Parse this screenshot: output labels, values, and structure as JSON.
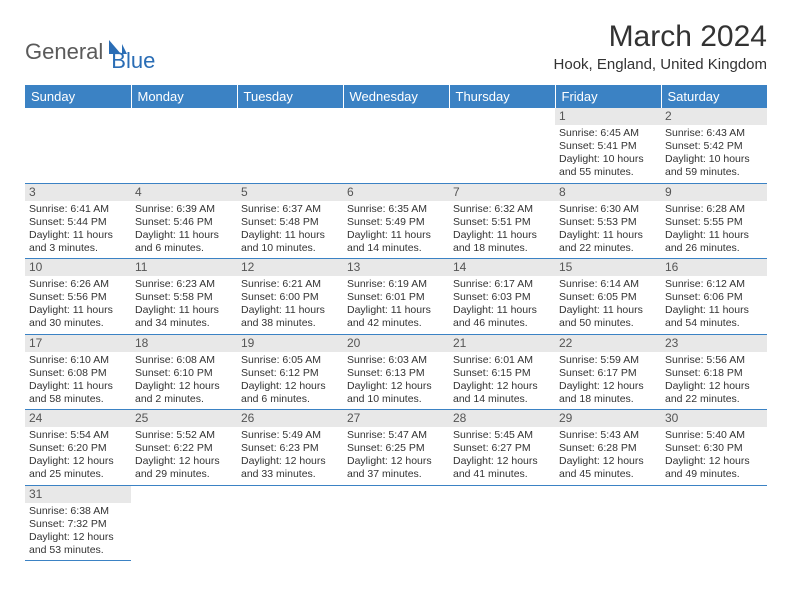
{
  "logo": {
    "general": "General",
    "blue": "Blue"
  },
  "title": "March 2024",
  "location": "Hook, England, United Kingdom",
  "colors": {
    "header_bg": "#3b82c4",
    "header_text": "#ffffff",
    "daynum_bg": "#e8e8e8",
    "border": "#3b82c4"
  },
  "weekdays": [
    "Sunday",
    "Monday",
    "Tuesday",
    "Wednesday",
    "Thursday",
    "Friday",
    "Saturday"
  ],
  "weeks": [
    [
      null,
      null,
      null,
      null,
      null,
      {
        "n": "1",
        "sunrise": "Sunrise: 6:45 AM",
        "sunset": "Sunset: 5:41 PM",
        "daylight": "Daylight: 10 hours and 55 minutes."
      },
      {
        "n": "2",
        "sunrise": "Sunrise: 6:43 AM",
        "sunset": "Sunset: 5:42 PM",
        "daylight": "Daylight: 10 hours and 59 minutes."
      }
    ],
    [
      {
        "n": "3",
        "sunrise": "Sunrise: 6:41 AM",
        "sunset": "Sunset: 5:44 PM",
        "daylight": "Daylight: 11 hours and 3 minutes."
      },
      {
        "n": "4",
        "sunrise": "Sunrise: 6:39 AM",
        "sunset": "Sunset: 5:46 PM",
        "daylight": "Daylight: 11 hours and 6 minutes."
      },
      {
        "n": "5",
        "sunrise": "Sunrise: 6:37 AM",
        "sunset": "Sunset: 5:48 PM",
        "daylight": "Daylight: 11 hours and 10 minutes."
      },
      {
        "n": "6",
        "sunrise": "Sunrise: 6:35 AM",
        "sunset": "Sunset: 5:49 PM",
        "daylight": "Daylight: 11 hours and 14 minutes."
      },
      {
        "n": "7",
        "sunrise": "Sunrise: 6:32 AM",
        "sunset": "Sunset: 5:51 PM",
        "daylight": "Daylight: 11 hours and 18 minutes."
      },
      {
        "n": "8",
        "sunrise": "Sunrise: 6:30 AM",
        "sunset": "Sunset: 5:53 PM",
        "daylight": "Daylight: 11 hours and 22 minutes."
      },
      {
        "n": "9",
        "sunrise": "Sunrise: 6:28 AM",
        "sunset": "Sunset: 5:55 PM",
        "daylight": "Daylight: 11 hours and 26 minutes."
      }
    ],
    [
      {
        "n": "10",
        "sunrise": "Sunrise: 6:26 AM",
        "sunset": "Sunset: 5:56 PM",
        "daylight": "Daylight: 11 hours and 30 minutes."
      },
      {
        "n": "11",
        "sunrise": "Sunrise: 6:23 AM",
        "sunset": "Sunset: 5:58 PM",
        "daylight": "Daylight: 11 hours and 34 minutes."
      },
      {
        "n": "12",
        "sunrise": "Sunrise: 6:21 AM",
        "sunset": "Sunset: 6:00 PM",
        "daylight": "Daylight: 11 hours and 38 minutes."
      },
      {
        "n": "13",
        "sunrise": "Sunrise: 6:19 AM",
        "sunset": "Sunset: 6:01 PM",
        "daylight": "Daylight: 11 hours and 42 minutes."
      },
      {
        "n": "14",
        "sunrise": "Sunrise: 6:17 AM",
        "sunset": "Sunset: 6:03 PM",
        "daylight": "Daylight: 11 hours and 46 minutes."
      },
      {
        "n": "15",
        "sunrise": "Sunrise: 6:14 AM",
        "sunset": "Sunset: 6:05 PM",
        "daylight": "Daylight: 11 hours and 50 minutes."
      },
      {
        "n": "16",
        "sunrise": "Sunrise: 6:12 AM",
        "sunset": "Sunset: 6:06 PM",
        "daylight": "Daylight: 11 hours and 54 minutes."
      }
    ],
    [
      {
        "n": "17",
        "sunrise": "Sunrise: 6:10 AM",
        "sunset": "Sunset: 6:08 PM",
        "daylight": "Daylight: 11 hours and 58 minutes."
      },
      {
        "n": "18",
        "sunrise": "Sunrise: 6:08 AM",
        "sunset": "Sunset: 6:10 PM",
        "daylight": "Daylight: 12 hours and 2 minutes."
      },
      {
        "n": "19",
        "sunrise": "Sunrise: 6:05 AM",
        "sunset": "Sunset: 6:12 PM",
        "daylight": "Daylight: 12 hours and 6 minutes."
      },
      {
        "n": "20",
        "sunrise": "Sunrise: 6:03 AM",
        "sunset": "Sunset: 6:13 PM",
        "daylight": "Daylight: 12 hours and 10 minutes."
      },
      {
        "n": "21",
        "sunrise": "Sunrise: 6:01 AM",
        "sunset": "Sunset: 6:15 PM",
        "daylight": "Daylight: 12 hours and 14 minutes."
      },
      {
        "n": "22",
        "sunrise": "Sunrise: 5:59 AM",
        "sunset": "Sunset: 6:17 PM",
        "daylight": "Daylight: 12 hours and 18 minutes."
      },
      {
        "n": "23",
        "sunrise": "Sunrise: 5:56 AM",
        "sunset": "Sunset: 6:18 PM",
        "daylight": "Daylight: 12 hours and 22 minutes."
      }
    ],
    [
      {
        "n": "24",
        "sunrise": "Sunrise: 5:54 AM",
        "sunset": "Sunset: 6:20 PM",
        "daylight": "Daylight: 12 hours and 25 minutes."
      },
      {
        "n": "25",
        "sunrise": "Sunrise: 5:52 AM",
        "sunset": "Sunset: 6:22 PM",
        "daylight": "Daylight: 12 hours and 29 minutes."
      },
      {
        "n": "26",
        "sunrise": "Sunrise: 5:49 AM",
        "sunset": "Sunset: 6:23 PM",
        "daylight": "Daylight: 12 hours and 33 minutes."
      },
      {
        "n": "27",
        "sunrise": "Sunrise: 5:47 AM",
        "sunset": "Sunset: 6:25 PM",
        "daylight": "Daylight: 12 hours and 37 minutes."
      },
      {
        "n": "28",
        "sunrise": "Sunrise: 5:45 AM",
        "sunset": "Sunset: 6:27 PM",
        "daylight": "Daylight: 12 hours and 41 minutes."
      },
      {
        "n": "29",
        "sunrise": "Sunrise: 5:43 AM",
        "sunset": "Sunset: 6:28 PM",
        "daylight": "Daylight: 12 hours and 45 minutes."
      },
      {
        "n": "30",
        "sunrise": "Sunrise: 5:40 AM",
        "sunset": "Sunset: 6:30 PM",
        "daylight": "Daylight: 12 hours and 49 minutes."
      }
    ],
    [
      {
        "n": "31",
        "sunrise": "Sunrise: 6:38 AM",
        "sunset": "Sunset: 7:32 PM",
        "daylight": "Daylight: 12 hours and 53 minutes."
      },
      null,
      null,
      null,
      null,
      null,
      null
    ]
  ]
}
